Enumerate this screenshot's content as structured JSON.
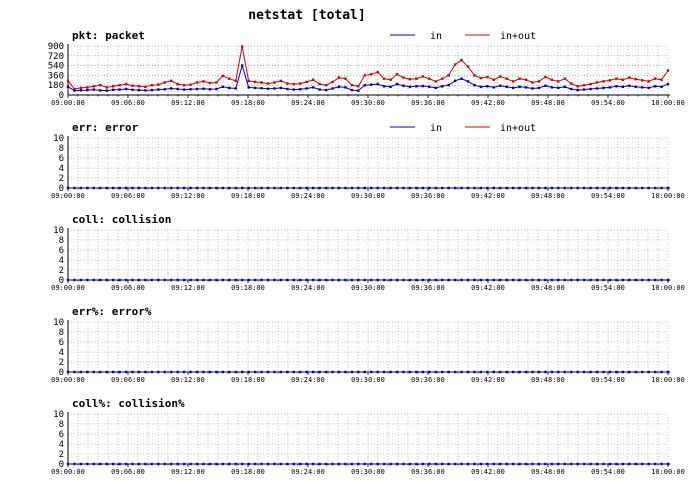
{
  "title": "netstat [total]",
  "colors": {
    "in": "#0000cc",
    "inout": "#dd0000",
    "axis": "#000000",
    "grid": "#888888"
  },
  "x_tick_labels": [
    "09:00:00",
    "09:06:00",
    "09:12:00",
    "09:18:00",
    "09:24:00",
    "09:30:00",
    "09:36:00",
    "09:42:00",
    "09:48:00",
    "09:54:00",
    "10:00:00"
  ],
  "chart_data": [
    {
      "type": "line",
      "id": "pkt",
      "title": "pkt: packet",
      "ylim": [
        0,
        900
      ],
      "y_ticks": [
        0,
        180,
        360,
        540,
        720,
        900
      ],
      "legend": [
        "in",
        "in+out"
      ],
      "series": [
        {
          "name": "in",
          "color": "#0000cc",
          "values": [
            150,
            80,
            85,
            90,
            100,
            85,
            80,
            95,
            100,
            110,
            95,
            90,
            85,
            90,
            100,
            105,
            120,
            110,
            100,
            105,
            110,
            115,
            105,
            110,
            150,
            130,
            120,
            540,
            140,
            130,
            125,
            115,
            120,
            130,
            110,
            100,
            105,
            120,
            140,
            100,
            90,
            120,
            150,
            140,
            90,
            80,
            180,
            190,
            200,
            160,
            150,
            200,
            170,
            150,
            160,
            165,
            150,
            130,
            160,
            180,
            260,
            300,
            250,
            180,
            150,
            160,
            140,
            170,
            150,
            130,
            150,
            140,
            120,
            130,
            170,
            140,
            130,
            150,
            110,
            90,
            100,
            110,
            120,
            130,
            140,
            160,
            150,
            170,
            150,
            140,
            130,
            160,
            150,
            200
          ]
        },
        {
          "name": "in+out",
          "color": "#dd0000",
          "values": [
            260,
            110,
            130,
            140,
            160,
            180,
            140,
            160,
            180,
            200,
            170,
            160,
            150,
            180,
            190,
            230,
            260,
            200,
            180,
            190,
            230,
            250,
            220,
            230,
            350,
            300,
            260,
            890,
            260,
            240,
            230,
            210,
            230,
            260,
            210,
            200,
            210,
            240,
            280,
            200,
            180,
            240,
            320,
            300,
            180,
            160,
            360,
            380,
            420,
            300,
            280,
            380,
            320,
            290,
            300,
            340,
            300,
            250,
            300,
            360,
            560,
            640,
            520,
            360,
            310,
            330,
            280,
            340,
            300,
            250,
            300,
            280,
            230,
            250,
            330,
            280,
            250,
            300,
            210,
            160,
            180,
            200,
            230,
            250,
            270,
            300,
            280,
            320,
            290,
            270,
            250,
            300,
            280,
            450
          ]
        }
      ]
    },
    {
      "type": "line",
      "id": "err",
      "title": "err: error",
      "ylim": [
        0,
        10
      ],
      "y_ticks": [
        0,
        2,
        4,
        6,
        8,
        10
      ],
      "legend": [
        "in",
        "in+out"
      ],
      "series": [
        {
          "name": "in",
          "color": "#0000cc",
          "constant": 0
        }
      ]
    },
    {
      "type": "line",
      "id": "coll",
      "title": "coll: collision",
      "ylim": [
        0,
        10
      ],
      "y_ticks": [
        0,
        2,
        4,
        6,
        8,
        10
      ],
      "legend": [],
      "series": [
        {
          "name": "",
          "color": "#0000cc",
          "constant": 0
        }
      ]
    },
    {
      "type": "line",
      "id": "errpct",
      "title": "err%: error%",
      "ylim": [
        0,
        10
      ],
      "y_ticks": [
        0,
        2,
        4,
        6,
        8,
        10
      ],
      "legend": [],
      "series": [
        {
          "name": "",
          "color": "#0000cc",
          "constant": 0
        }
      ]
    },
    {
      "type": "line",
      "id": "collpct",
      "title": "coll%: collision%",
      "ylim": [
        0,
        10
      ],
      "y_ticks": [
        0,
        2,
        4,
        6,
        8,
        10
      ],
      "legend": [],
      "series": [
        {
          "name": "",
          "color": "#0000cc",
          "constant": 0
        }
      ]
    }
  ]
}
